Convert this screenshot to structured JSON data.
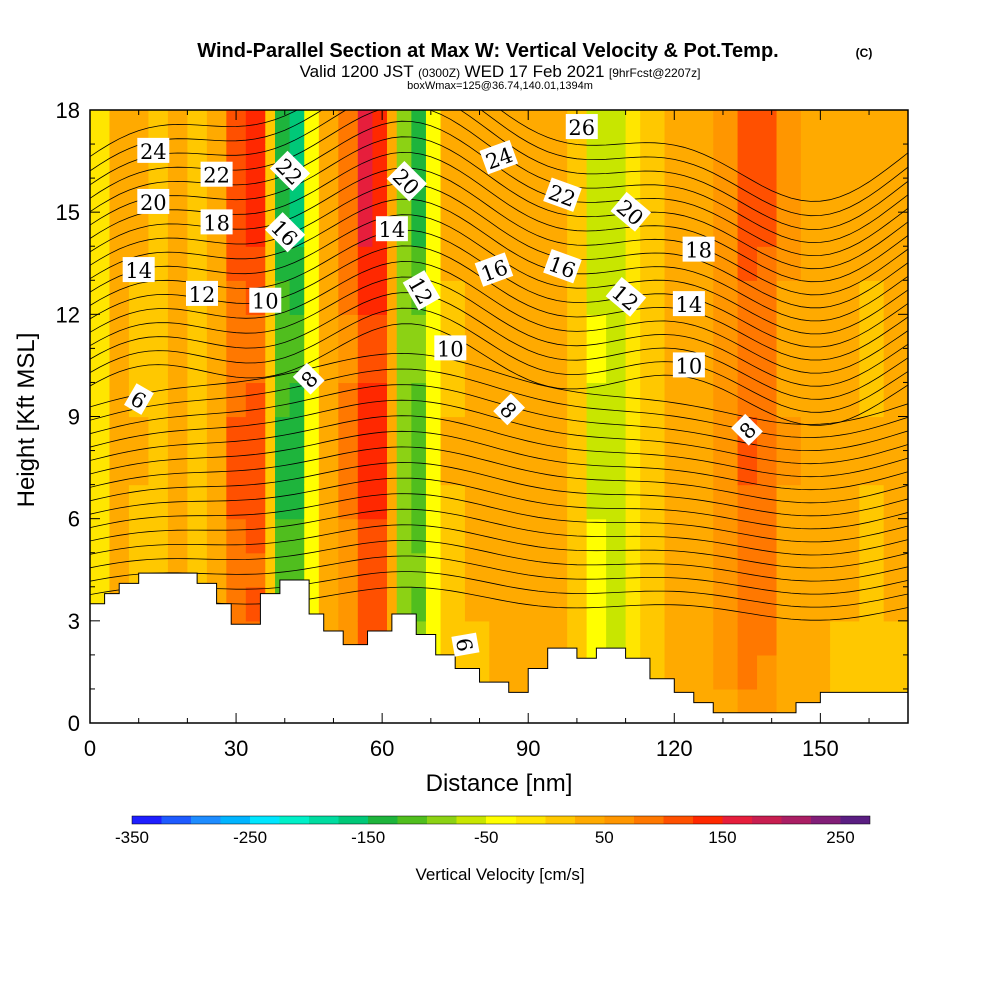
{
  "chart_data": {
    "type": "heatmap",
    "title": "Wind-Parallel Section at Max W: Vertical Velocity & Pot.Temp.",
    "title_mark": "(C)",
    "subtitle_valid": "Valid 1200 JST",
    "subtitle_utc": "(0300Z)",
    "subtitle_date": "WED 17 Feb 2021",
    "subtitle_fcst": "[9hrFcst@2207z]",
    "subtitle2": "boxWmax=125@36.74,140.01,1394m",
    "xlabel": "Distance [nm]",
    "ylabel": "Height [Kft MSL]",
    "xlim": [
      0,
      168
    ],
    "ylim": [
      0,
      18
    ],
    "x_ticks": [
      "0",
      "30",
      "60",
      "90",
      "120",
      "150"
    ],
    "x_tick_values": [
      0,
      30,
      60,
      90,
      120,
      150
    ],
    "y_ticks": [
      "0",
      "3",
      "6",
      "9",
      "12",
      "15",
      "18"
    ],
    "y_tick_values": [
      0,
      3,
      6,
      9,
      12,
      15,
      18
    ],
    "colorbar": {
      "label": "Vertical Velocity [cm/s]",
      "range": [
        -350,
        275
      ],
      "tick_labels": [
        "-350",
        "-250",
        "-150",
        "-50",
        "50",
        "150",
        "250"
      ],
      "tick_values": [
        -350,
        -250,
        -150,
        -50,
        50,
        150,
        250
      ],
      "colors": [
        "#1e1eff",
        "#1e5aff",
        "#1e8cff",
        "#00b4ff",
        "#00e6ff",
        "#00f0c8",
        "#00dca0",
        "#00c878",
        "#1eb43c",
        "#50be1e",
        "#8cd214",
        "#c8e600",
        "#ffff00",
        "#ffe600",
        "#ffc800",
        "#ffaa00",
        "#ff9600",
        "#ff7800",
        "#ff5000",
        "#ff2800",
        "#e61e3c",
        "#c81e50",
        "#aa1e64",
        "#821e78",
        "#5a1e82"
      ]
    },
    "vertical_velocity_columns": [
      {
        "x": 0,
        "w": 20
      },
      {
        "x": 2,
        "w": -60
      },
      {
        "x": 4,
        "w": 20
      },
      {
        "x": 8,
        "w": 40
      },
      {
        "x": 12,
        "w": 10
      },
      {
        "x": 16,
        "w": 30
      },
      {
        "x": 20,
        "w": 40
      },
      {
        "x": 24,
        "w": 0
      },
      {
        "x": 28,
        "w": 70
      },
      {
        "x": 32,
        "w": 140
      },
      {
        "x": 36,
        "w": 90
      },
      {
        "x": 38,
        "w": -60
      },
      {
        "x": 41,
        "w": -200
      },
      {
        "x": 44,
        "w": -80
      },
      {
        "x": 47,
        "w": 20
      },
      {
        "x": 51,
        "w": 60
      },
      {
        "x": 55,
        "w": 110
      },
      {
        "x": 58,
        "w": 170
      },
      {
        "x": 61,
        "w": 100
      },
      {
        "x": 63,
        "w": -30
      },
      {
        "x": 66,
        "w": -150
      },
      {
        "x": 69,
        "w": -80
      },
      {
        "x": 72,
        "w": 10
      },
      {
        "x": 77,
        "w": 40
      },
      {
        "x": 82,
        "w": 20
      },
      {
        "x": 86,
        "w": 60
      },
      {
        "x": 90,
        "w": 20
      },
      {
        "x": 95,
        "w": 50
      },
      {
        "x": 98,
        "w": 20
      },
      {
        "x": 102,
        "w": -20
      },
      {
        "x": 106,
        "w": -90
      },
      {
        "x": 110,
        "w": -40
      },
      {
        "x": 113,
        "w": 10
      },
      {
        "x": 118,
        "w": 30
      },
      {
        "x": 124,
        "w": 40
      },
      {
        "x": 128,
        "w": 50
      },
      {
        "x": 133,
        "w": 80
      },
      {
        "x": 137,
        "w": 120
      },
      {
        "x": 141,
        "w": 70
      },
      {
        "x": 146,
        "w": 30
      },
      {
        "x": 152,
        "w": 40
      },
      {
        "x": 158,
        "w": 20
      },
      {
        "x": 163,
        "w": 30
      },
      {
        "x": 168,
        "w": 30
      }
    ],
    "terrain": [
      {
        "x": 0,
        "z": 3.5
      },
      {
        "x": 3,
        "z": 3.8
      },
      {
        "x": 6,
        "z": 4.1
      },
      {
        "x": 10,
        "z": 4.4
      },
      {
        "x": 22,
        "z": 4.1
      },
      {
        "x": 26,
        "z": 3.5
      },
      {
        "x": 29,
        "z": 2.9
      },
      {
        "x": 35,
        "z": 3.8
      },
      {
        "x": 39,
        "z": 4.2
      },
      {
        "x": 45,
        "z": 3.2
      },
      {
        "x": 48,
        "z": 2.7
      },
      {
        "x": 52,
        "z": 2.3
      },
      {
        "x": 57,
        "z": 2.7
      },
      {
        "x": 62,
        "z": 3.2
      },
      {
        "x": 67,
        "z": 2.6
      },
      {
        "x": 71,
        "z": 2.0
      },
      {
        "x": 75,
        "z": 1.6
      },
      {
        "x": 80,
        "z": 1.2
      },
      {
        "x": 86,
        "z": 0.9
      },
      {
        "x": 90,
        "z": 1.6
      },
      {
        "x": 94,
        "z": 2.2
      },
      {
        "x": 100,
        "z": 1.9
      },
      {
        "x": 104,
        "z": 2.2
      },
      {
        "x": 110,
        "z": 1.9
      },
      {
        "x": 115,
        "z": 1.3
      },
      {
        "x": 120,
        "z": 0.9
      },
      {
        "x": 124,
        "z": 0.6
      },
      {
        "x": 128,
        "z": 0.3
      },
      {
        "x": 134,
        "z": 0.3
      },
      {
        "x": 138,
        "z": 0.3
      },
      {
        "x": 145,
        "z": 0.6
      },
      {
        "x": 150,
        "z": 0.9
      },
      {
        "x": 168,
        "z": 0.9
      }
    ],
    "contour_labels": [
      {
        "text": "24",
        "x": 13,
        "z": 16.8,
        "rot": 0
      },
      {
        "text": "22",
        "x": 26,
        "z": 16.1,
        "rot": 0
      },
      {
        "text": "20",
        "x": 13,
        "z": 15.3,
        "rot": 0
      },
      {
        "text": "18",
        "x": 26,
        "z": 14.7,
        "rot": 0
      },
      {
        "text": "14",
        "x": 10,
        "z": 13.3,
        "rot": 0
      },
      {
        "text": "12",
        "x": 23,
        "z": 12.6,
        "rot": 0
      },
      {
        "text": "22",
        "x": 41,
        "z": 16.2,
        "rot": 45
      },
      {
        "text": "16",
        "x": 40,
        "z": 14.4,
        "rot": 45
      },
      {
        "text": "10",
        "x": 36,
        "z": 12.4,
        "rot": 0
      },
      {
        "text": "8",
        "x": 45,
        "z": 10.1,
        "rot": -45
      },
      {
        "text": "6",
        "x": 10,
        "z": 9.5,
        "rot": 30
      },
      {
        "text": "20",
        "x": 65,
        "z": 15.9,
        "rot": 45
      },
      {
        "text": "14",
        "x": 62,
        "z": 14.5,
        "rot": 0
      },
      {
        "text": "12",
        "x": 68,
        "z": 12.7,
        "rot": 60
      },
      {
        "text": "10",
        "x": 74,
        "z": 11.0,
        "rot": 0
      },
      {
        "text": "24",
        "x": 84,
        "z": 16.6,
        "rot": -20
      },
      {
        "text": "26",
        "x": 101,
        "z": 17.5,
        "rot": 0
      },
      {
        "text": "16",
        "x": 83,
        "z": 13.3,
        "rot": -20
      },
      {
        "text": "22",
        "x": 97,
        "z": 15.5,
        "rot": 20
      },
      {
        "text": "16",
        "x": 97,
        "z": 13.4,
        "rot": 20
      },
      {
        "text": "8",
        "x": 86,
        "z": 9.2,
        "rot": 45
      },
      {
        "text": "20",
        "x": 111,
        "z": 15.0,
        "rot": 40
      },
      {
        "text": "12",
        "x": 110,
        "z": 12.5,
        "rot": 40
      },
      {
        "text": "18",
        "x": 125,
        "z": 13.9,
        "rot": 0
      },
      {
        "text": "14",
        "x": 123,
        "z": 12.3,
        "rot": 0
      },
      {
        "text": "10",
        "x": 123,
        "z": 10.5,
        "rot": 0
      },
      {
        "text": "8",
        "x": 135,
        "z": 8.6,
        "rot": -45
      },
      {
        "text": "6",
        "x": 77,
        "z": 2.3,
        "rot": 80
      }
    ]
  }
}
